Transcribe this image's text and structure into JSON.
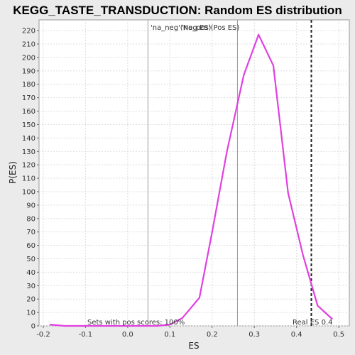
{
  "colors": {
    "curve": "#e040e0",
    "neg_label": "#3333aa",
    "pos_label": "#cc3333",
    "grid": "#dddddd",
    "marker": "#999999",
    "real_es": "#222222"
  },
  "chart_data": {
    "type": "line",
    "title": "KEGG_TASTE_TRANSDUCTION: Random ES distribution",
    "xlabel": "ES",
    "ylabel": "P(ES)",
    "xlim": [
      -0.21,
      0.525
    ],
    "ylim": [
      0,
      228
    ],
    "x_ticks": [
      -0.2,
      -0.1,
      0.0,
      0.1,
      0.2,
      0.3,
      0.4,
      0.5
    ],
    "x_tick_labels": [
      "-0.2",
      "-0.1",
      "0.0",
      "0.1",
      "0.2",
      "0.3",
      "0.4",
      "0.5"
    ],
    "y_ticks": [
      0,
      10,
      20,
      30,
      40,
      50,
      60,
      70,
      80,
      90,
      100,
      110,
      120,
      130,
      140,
      150,
      160,
      170,
      180,
      190,
      200,
      210,
      220
    ],
    "y_tick_labels": [
      "0",
      "10",
      "20",
      "30",
      "40",
      "50",
      "60",
      "70",
      "80",
      "90",
      "100",
      "110",
      "120",
      "130",
      "140",
      "150",
      "160",
      "170",
      "180",
      "190",
      "200",
      "210",
      "220"
    ],
    "grid": true,
    "series": [
      {
        "x": [
          -0.185,
          -0.15,
          -0.12,
          -0.09,
          -0.05,
          -0.02,
          0.01,
          0.04,
          0.07,
          0.1,
          0.13,
          0.17,
          0.2,
          0.235,
          0.275,
          0.31,
          0.345,
          0.38,
          0.415,
          0.45,
          0.485
        ],
        "values": [
          1,
          0,
          0,
          0,
          0,
          0,
          0,
          0,
          0,
          1,
          6,
          21,
          70,
          130,
          187,
          217,
          194,
          99,
          53,
          15,
          5
        ]
      }
    ],
    "vlines": [
      {
        "x": 0.048,
        "role": "neg-mean-marker"
      },
      {
        "x": 0.26,
        "role": "pos-mean-marker"
      }
    ],
    "real_es": {
      "x": 0.435,
      "label": "Real ES 0.4"
    },
    "annotations": {
      "neg_label": "'na_neg'(Neg ES)",
      "pos_label": "'na_pos'(Pos ES)",
      "footer": "Sets with pos scores: 100%"
    }
  }
}
